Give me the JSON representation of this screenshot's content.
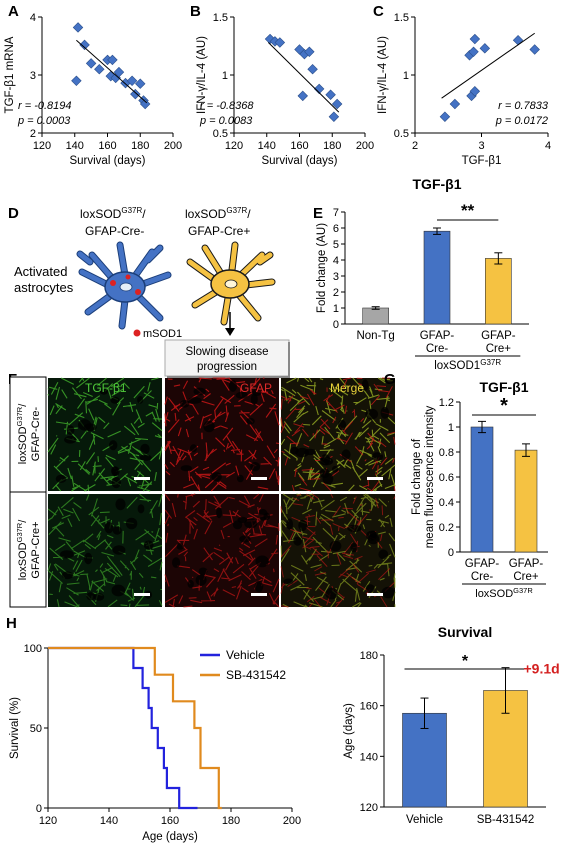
{
  "panels": {
    "A": {
      "letter": "A"
    },
    "B": {
      "letter": "B"
    },
    "C": {
      "letter": "C"
    },
    "D": {
      "letter": "D",
      "left_line1": "loxSOD",
      "left_sup": "G37R",
      "left_slash": "/",
      "left_line2": "GFAP-Cre-",
      "right_line1": "loxSOD",
      "right_sup": "G37R",
      "right_slash": "/",
      "right_line2": "GFAP-Cre+",
      "activated_line1": "Activated",
      "activated_line2": "astrocytes",
      "msod1_label": "mSOD1",
      "outcome_line1": "Slowing disease",
      "outcome_line2": "progression"
    },
    "E": {
      "letter": "E"
    },
    "F": {
      "letter": "F",
      "channels": [
        "TGF-β1",
        "GFAP",
        "Merge"
      ],
      "row1_line1": "loxSOD",
      "row1_sup": "G37R",
      "row1_slash": "/",
      "row1_line2": "GFAP-Cre-",
      "row2_line1": "loxSOD",
      "row2_sup": "G37R",
      "row2_slash": "/",
      "row2_line2": "GFAP-Cre+"
    },
    "G": {
      "letter": "G"
    },
    "H": {
      "letter": "H"
    }
  },
  "colors": {
    "diamond": "#4472c4",
    "blue": "#4472c4",
    "yellow": "#f5c242",
    "gray": "#a6a6a6",
    "orange": "#e08a1e",
    "navy": "#2222dd",
    "red_text": "#d42020",
    "green_channel": "#3fa82a",
    "red_channel": "#c81818"
  },
  "chart_data": [
    {
      "id": "A",
      "type": "scatter",
      "xlabel": "Survival (days)",
      "ylabel": "TGF-β1 mRNA",
      "xlim": [
        120,
        200
      ],
      "ylim": [
        2,
        4
      ],
      "xticks": [
        "120",
        "140",
        "160",
        "180",
        "200"
      ],
      "yticks": [
        "2",
        "3",
        "4"
      ],
      "points": [
        [
          142,
          3.82
        ],
        [
          146,
          3.52
        ],
        [
          141,
          2.9
        ],
        [
          150,
          3.2
        ],
        [
          155,
          3.1
        ],
        [
          160,
          3.26
        ],
        [
          162,
          2.98
        ],
        [
          163,
          3.26
        ],
        [
          165,
          2.95
        ],
        [
          167,
          3.05
        ],
        [
          171,
          2.86
        ],
        [
          175,
          2.9
        ],
        [
          177,
          2.67
        ],
        [
          180,
          2.85
        ],
        [
          182,
          2.56
        ],
        [
          183,
          2.5
        ]
      ],
      "fit": [
        [
          141,
          3.6
        ],
        [
          184,
          2.52
        ]
      ],
      "r_text": "r = -0.8194",
      "p_text": "p = 0.0003"
    },
    {
      "id": "B",
      "type": "scatter",
      "xlabel": "Survival (days)",
      "ylabel": "IFN-γ/IL-4 (AU)",
      "xlim": [
        120,
        200
      ],
      "ylim": [
        0.5,
        1.5
      ],
      "xticks": [
        "120",
        "140",
        "160",
        "180",
        "200"
      ],
      "yticks": [
        "0.5",
        "1",
        "1.5"
      ],
      "points": [
        [
          142,
          1.31
        ],
        [
          145,
          1.29
        ],
        [
          148,
          1.28
        ],
        [
          160,
          1.22
        ],
        [
          163,
          1.18
        ],
        [
          166,
          1.2
        ],
        [
          162,
          0.82
        ],
        [
          168,
          1.05
        ],
        [
          172,
          0.88
        ],
        [
          179,
          0.83
        ],
        [
          183,
          0.75
        ],
        [
          181,
          0.64
        ]
      ],
      "fit": [
        [
          141,
          1.28
        ],
        [
          184,
          0.68
        ]
      ],
      "r_text": "r = -0.8368",
      "p_text": "p = 0.0083"
    },
    {
      "id": "C",
      "type": "scatter",
      "xlabel": "TGF-β1",
      "ylabel": "IFN-γ/IL-4 (AU)",
      "xlim": [
        2,
        4
      ],
      "ylim": [
        0.5,
        1.5
      ],
      "xticks": [
        "2",
        "3",
        "4"
      ],
      "yticks": [
        "0.5",
        "1",
        "1.5"
      ],
      "points": [
        [
          2.45,
          0.64
        ],
        [
          2.6,
          0.75
        ],
        [
          2.85,
          0.82
        ],
        [
          2.9,
          0.86
        ],
        [
          2.82,
          1.17
        ],
        [
          2.9,
          1.31
        ],
        [
          3.05,
          1.23
        ],
        [
          3.55,
          1.3
        ],
        [
          3.8,
          1.22
        ],
        [
          2.88,
          1.2
        ]
      ],
      "fit": [
        [
          2.4,
          0.8
        ],
        [
          3.8,
          1.36
        ]
      ],
      "r_text": "r = 0.7833",
      "p_text": "p = 0.0172"
    },
    {
      "id": "E",
      "type": "bar",
      "title": "TGF-β1",
      "ylabel": "Fold change (AU)",
      "ylim": [
        0,
        7
      ],
      "yticks": [
        "0",
        "1",
        "2",
        "3",
        "4",
        "5",
        "6",
        "7"
      ],
      "categories": [
        "Non-Tg",
        "GFAP-Cre-",
        "GFAP-Cre+"
      ],
      "cat_line1": [
        "Non-Tg",
        "GFAP-",
        "GFAP-"
      ],
      "cat_line2": [
        "",
        "Cre-",
        "Cre+"
      ],
      "values": [
        1.0,
        5.8,
        4.1
      ],
      "errors": [
        0.08,
        0.2,
        0.35
      ],
      "group_label": "loxSOD1",
      "group_sup": "G37R",
      "sig": "**"
    },
    {
      "id": "G",
      "type": "bar",
      "title": "TGF-β1",
      "ylabel_line1": "Fold change of",
      "ylabel_line2": "mean fluorescence intensity",
      "ylim": [
        0,
        1.2
      ],
      "yticks": [
        "0",
        "0.2",
        "0.4",
        "0.6",
        "0.8",
        "1",
        "1.2"
      ],
      "categories": [
        "GFAP-Cre-",
        "GFAP-Cre+"
      ],
      "cat_line1": [
        "GFAP-",
        "GFAP-"
      ],
      "cat_line2": [
        "Cre-",
        "Cre+"
      ],
      "values": [
        1.0,
        0.815
      ],
      "errors": [
        0.045,
        0.05
      ],
      "group_label": "loxSOD",
      "group_sup": "G37R",
      "sig": "*"
    },
    {
      "id": "H-left",
      "type": "line",
      "xlabel": "Age (days)",
      "ylabel": "Survival (%)",
      "xlim": [
        120,
        200
      ],
      "ylim": [
        0,
        100
      ],
      "xticks": [
        "120",
        "140",
        "160",
        "180",
        "200"
      ],
      "yticks": [
        "0",
        "50",
        "100"
      ],
      "series": [
        {
          "name": "Vehicle",
          "points": [
            [
              120,
              100
            ],
            [
              148,
              100
            ],
            [
              148,
              87.5
            ],
            [
              151,
              87.5
            ],
            [
              151,
              75
            ],
            [
              153,
              75
            ],
            [
              153,
              62.5
            ],
            [
              154,
              62.5
            ],
            [
              154,
              50
            ],
            [
              156,
              50
            ],
            [
              156,
              37.5
            ],
            [
              158,
              37.5
            ],
            [
              158,
              25
            ],
            [
              159,
              25
            ],
            [
              159,
              12.5
            ],
            [
              163,
              12.5
            ],
            [
              163,
              0
            ],
            [
              169,
              0
            ]
          ]
        },
        {
          "name": "SB-431542",
          "points": [
            [
              120,
              100
            ],
            [
              155,
              100
            ],
            [
              155,
              83.3
            ],
            [
              161,
              83.3
            ],
            [
              161,
              66.7
            ],
            [
              168,
              66.7
            ],
            [
              168,
              50
            ],
            [
              170,
              50
            ],
            [
              170,
              25
            ],
            [
              176,
              25
            ],
            [
              176,
              0
            ],
            [
              177,
              0
            ]
          ]
        }
      ]
    },
    {
      "id": "H-right",
      "type": "bar",
      "title": "Survival",
      "ylabel": "Age (days)",
      "ylim": [
        120,
        180
      ],
      "yticks": [
        "120",
        "140",
        "160",
        "180"
      ],
      "categories": [
        "Vehicle",
        "SB-431542"
      ],
      "values": [
        157,
        166
      ],
      "errors": [
        6,
        9
      ],
      "annotation": "+9.1d",
      "sig": "*"
    }
  ]
}
